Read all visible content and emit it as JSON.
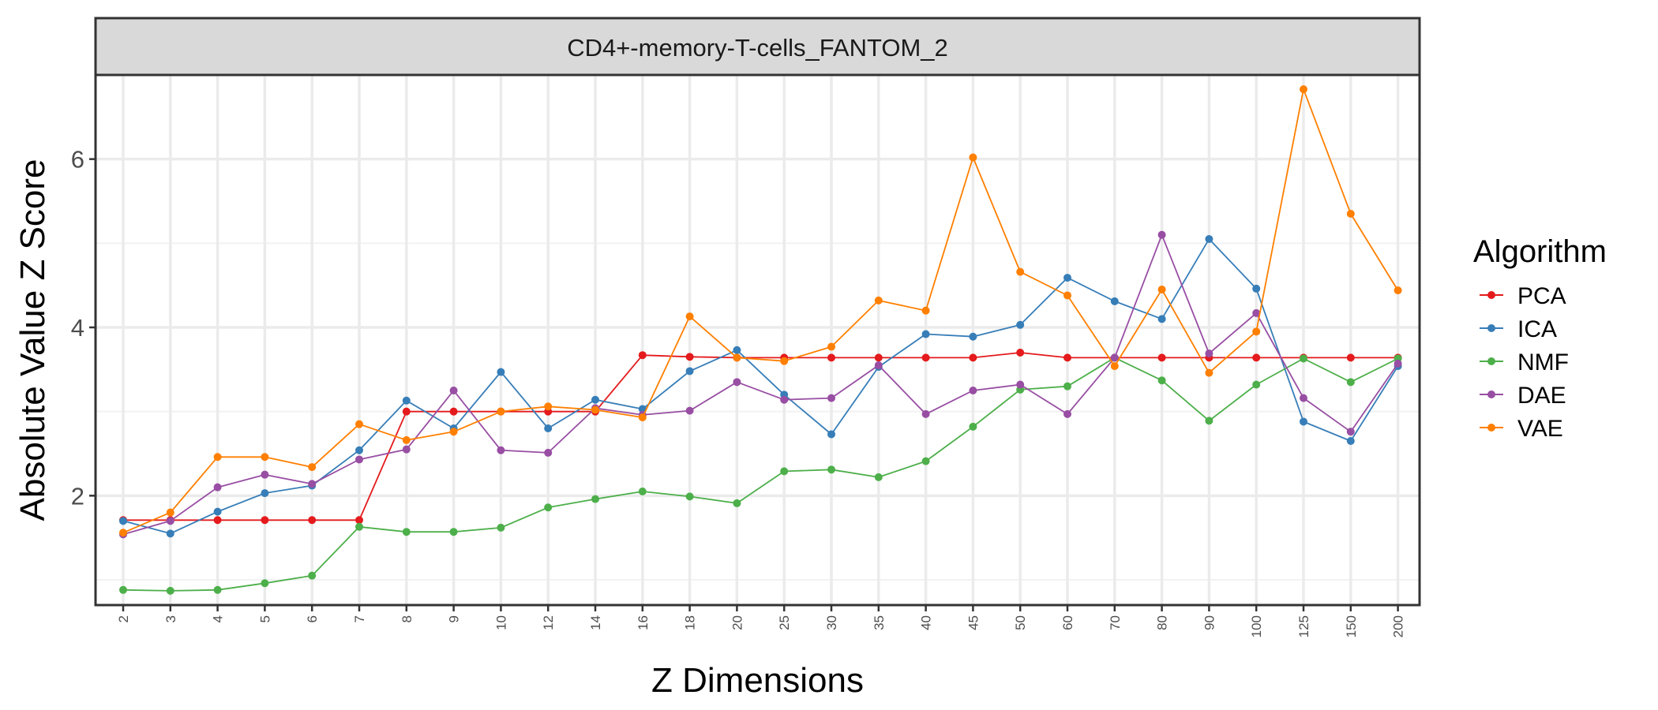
{
  "chart_data": {
    "type": "line",
    "title": "CD4+-memory-T-cells_FANTOM_2",
    "xlabel": "Z Dimensions",
    "ylabel": "Absolute Value Z Score",
    "ylim": [
      0.7,
      7.0
    ],
    "yticks": [
      2,
      4,
      6
    ],
    "grid": true,
    "legend_title": "Algorithm",
    "legend_position": "right",
    "categories": [
      "2",
      "3",
      "4",
      "5",
      "6",
      "7",
      "8",
      "9",
      "10",
      "12",
      "14",
      "16",
      "18",
      "20",
      "25",
      "30",
      "35",
      "40",
      "45",
      "50",
      "60",
      "70",
      "80",
      "90",
      "100",
      "125",
      "150",
      "200"
    ],
    "series": [
      {
        "name": "PCA",
        "color": "#e41a1c",
        "values": [
          1.71,
          1.71,
          1.71,
          1.71,
          1.71,
          1.71,
          3.0,
          3.0,
          3.0,
          3.0,
          3.0,
          3.67,
          3.65,
          3.64,
          3.64,
          3.64,
          3.64,
          3.64,
          3.64,
          3.7,
          3.64,
          3.64,
          3.64,
          3.64,
          3.64,
          3.64,
          3.64,
          3.64
        ]
      },
      {
        "name": "ICA",
        "color": "#377eb8",
        "values": [
          1.7,
          1.55,
          1.81,
          2.03,
          2.12,
          2.54,
          3.13,
          2.8,
          3.47,
          2.8,
          3.14,
          3.03,
          3.48,
          3.73,
          3.2,
          2.73,
          3.53,
          3.92,
          3.89,
          4.03,
          4.59,
          4.31,
          4.1,
          5.05,
          4.46,
          2.88,
          2.65,
          3.54
        ]
      },
      {
        "name": "NMF",
        "color": "#4daf4a",
        "values": [
          0.88,
          0.87,
          0.88,
          0.96,
          1.05,
          1.63,
          1.57,
          1.57,
          1.62,
          1.86,
          1.96,
          2.05,
          1.99,
          1.91,
          2.29,
          2.31,
          2.22,
          2.41,
          2.82,
          3.26,
          3.3,
          3.64,
          3.37,
          2.89,
          3.32,
          3.63,
          3.35,
          3.63
        ]
      },
      {
        "name": "DAE",
        "color": "#984ea3",
        "values": [
          1.54,
          1.7,
          2.1,
          2.25,
          2.14,
          2.43,
          2.55,
          3.25,
          2.54,
          2.51,
          3.04,
          2.96,
          3.01,
          3.35,
          3.14,
          3.16,
          3.55,
          2.97,
          3.25,
          3.32,
          2.97,
          3.64,
          5.1,
          3.69,
          4.17,
          3.16,
          2.76,
          3.57
        ]
      },
      {
        "name": "VAE",
        "color": "#ff7f00",
        "values": [
          1.56,
          1.8,
          2.46,
          2.46,
          2.34,
          2.85,
          2.66,
          2.76,
          3.0,
          3.06,
          3.02,
          2.93,
          4.13,
          3.64,
          3.6,
          3.77,
          4.32,
          4.2,
          6.02,
          4.66,
          4.38,
          3.54,
          4.45,
          3.46,
          3.95,
          6.83,
          5.35,
          4.44
        ]
      }
    ]
  }
}
